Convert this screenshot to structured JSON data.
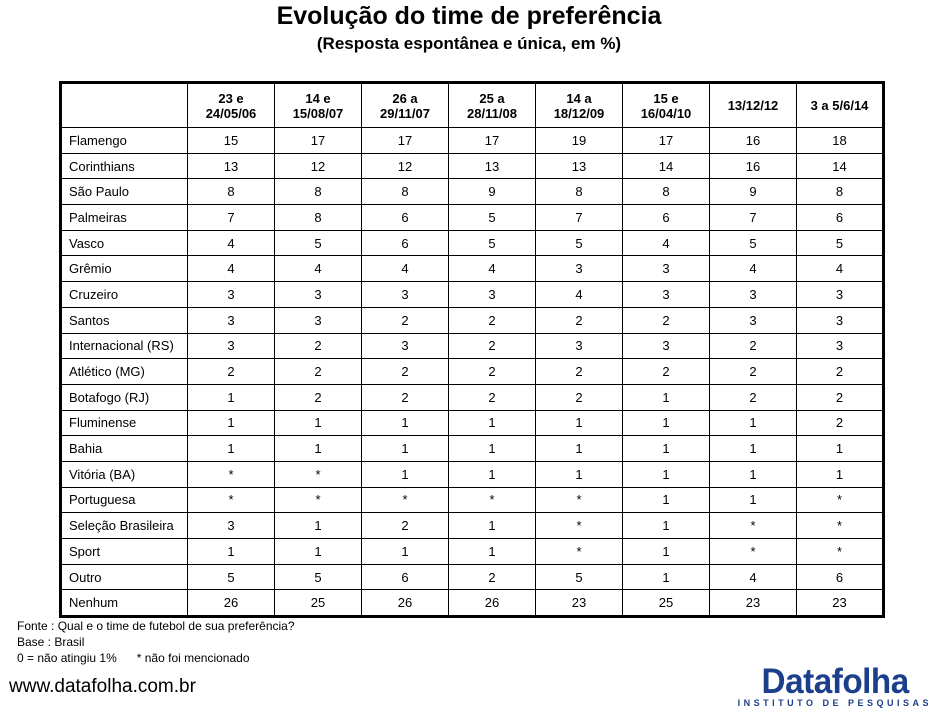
{
  "title": "Evolução do time de preferência",
  "subtitle": "(Resposta espontânea e única, em %)",
  "table": {
    "columns": [
      [
        "23 e",
        "24/05/06"
      ],
      [
        "14 e",
        "15/08/07"
      ],
      [
        "26 a",
        "29/11/07"
      ],
      [
        "25 a",
        "28/11/08"
      ],
      [
        "14 a",
        "18/12/09"
      ],
      [
        "15 e",
        "16/04/10"
      ],
      [
        "13/12/12"
      ],
      [
        "3 a 5/6/14"
      ]
    ],
    "rows": [
      {
        "team": "Flamengo",
        "values": [
          "15",
          "17",
          "17",
          "17",
          "19",
          "17",
          "16",
          "18"
        ]
      },
      {
        "team": "Corinthians",
        "values": [
          "13",
          "12",
          "12",
          "13",
          "13",
          "14",
          "16",
          "14"
        ]
      },
      {
        "team": "São Paulo",
        "values": [
          "8",
          "8",
          "8",
          "9",
          "8",
          "8",
          "9",
          "8"
        ]
      },
      {
        "team": "Palmeiras",
        "values": [
          "7",
          "8",
          "6",
          "5",
          "7",
          "6",
          "7",
          "6"
        ]
      },
      {
        "team": "Vasco",
        "values": [
          "4",
          "5",
          "6",
          "5",
          "5",
          "4",
          "5",
          "5"
        ]
      },
      {
        "team": "Grêmio",
        "values": [
          "4",
          "4",
          "4",
          "4",
          "3",
          "3",
          "4",
          "4"
        ]
      },
      {
        "team": "Cruzeiro",
        "values": [
          "3",
          "3",
          "3",
          "3",
          "4",
          "3",
          "3",
          "3"
        ]
      },
      {
        "team": "Santos",
        "values": [
          "3",
          "3",
          "2",
          "2",
          "2",
          "2",
          "3",
          "3"
        ]
      },
      {
        "team": "Internacional (RS)",
        "values": [
          "3",
          "2",
          "3",
          "2",
          "3",
          "3",
          "2",
          "3"
        ]
      },
      {
        "team": "Atlético (MG)",
        "values": [
          "2",
          "2",
          "2",
          "2",
          "2",
          "2",
          "2",
          "2"
        ]
      },
      {
        "team": "Botafogo (RJ)",
        "values": [
          "1",
          "2",
          "2",
          "2",
          "2",
          "1",
          "2",
          "2"
        ]
      },
      {
        "team": "Fluminense",
        "values": [
          "1",
          "1",
          "1",
          "1",
          "1",
          "1",
          "1",
          "2"
        ]
      },
      {
        "team": "Bahia",
        "values": [
          "1",
          "1",
          "1",
          "1",
          "1",
          "1",
          "1",
          "1"
        ]
      },
      {
        "team": "Vitória (BA)",
        "values": [
          "*",
          "*",
          "1",
          "1",
          "1",
          "1",
          "1",
          "1"
        ]
      },
      {
        "team": "Portuguesa",
        "values": [
          "*",
          "*",
          "*",
          "*",
          "*",
          "1",
          "1",
          "*"
        ]
      },
      {
        "team": "Seleção Brasileira",
        "values": [
          "3",
          "1",
          "2",
          "1",
          "*",
          "1",
          "*",
          "*"
        ]
      },
      {
        "team": "Sport",
        "values": [
          "1",
          "1",
          "1",
          "1",
          "*",
          "1",
          "*",
          "*"
        ]
      },
      {
        "team": "Outro",
        "values": [
          "5",
          "5",
          "6",
          "2",
          "5",
          "1",
          "4",
          "6"
        ]
      },
      {
        "team": "Nenhum",
        "values": [
          "26",
          "25",
          "26",
          "26",
          "23",
          "25",
          "23",
          "23"
        ]
      }
    ]
  },
  "notes": {
    "fonte": "Fonte : Qual e o time de futebol de sua preferência?",
    "base": "Base : Brasil",
    "legend": "0 = não atingiu 1%      * não foi mencionado"
  },
  "website": "www.datafolha.com.br",
  "logo": {
    "brand": "Datafolha",
    "tagline": "INSTITUTO DE PESQUISAS",
    "color": "#1b3f8a"
  }
}
